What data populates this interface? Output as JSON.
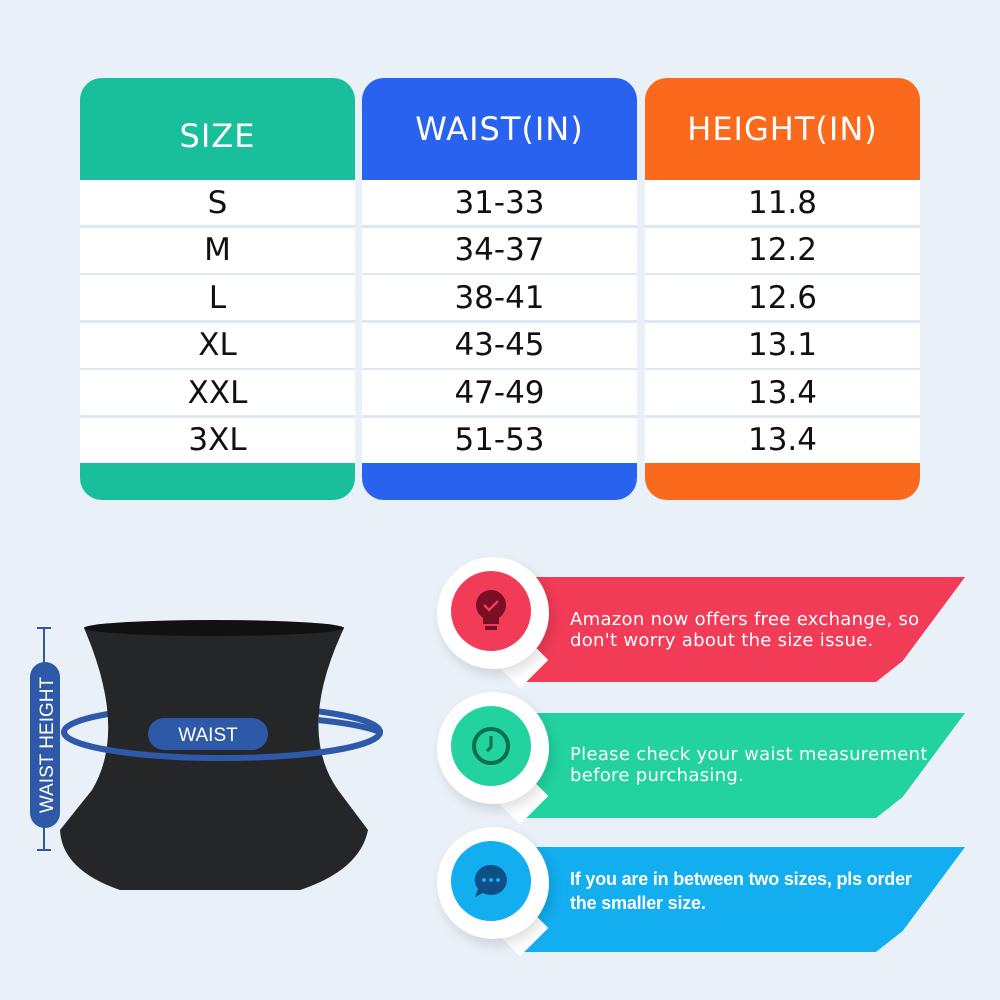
{
  "colors": {
    "size": "#19bf9a",
    "waist": "#2a62f0",
    "height": "#fb6a1c",
    "red": "#f23b57",
    "green": "#22d3a0",
    "blue": "#12aef0",
    "band": "#2e59a8"
  },
  "table": {
    "headers": [
      "SIZE",
      "WAIST(IN)",
      "HEIGHT(IN)"
    ],
    "rows": [
      [
        "S",
        "31-33",
        "11.8"
      ],
      [
        "M",
        "34-37",
        "12.2"
      ],
      [
        "L",
        "38-41",
        "12.6"
      ],
      [
        "XL",
        "43-45",
        "13.1"
      ],
      [
        "XXL",
        "47-49",
        "13.4"
      ],
      [
        "3XL",
        "51-53",
        "13.4"
      ]
    ]
  },
  "diagram": {
    "waist_label": "WAIST",
    "height_label": "WAIST HEIGHT"
  },
  "tips": [
    {
      "icon": "lightbulb-check-icon",
      "text1": "Amazon now offers free exchange, so",
      "text2": "don't worry about the size issue."
    },
    {
      "icon": "clock-icon",
      "text1": "Please check your waist measurement",
      "text2": "before purchasing."
    },
    {
      "icon": "chat-bubble-icon",
      "text1": "If you are in between two sizes, pls order",
      "text2": "the smaller size."
    }
  ]
}
